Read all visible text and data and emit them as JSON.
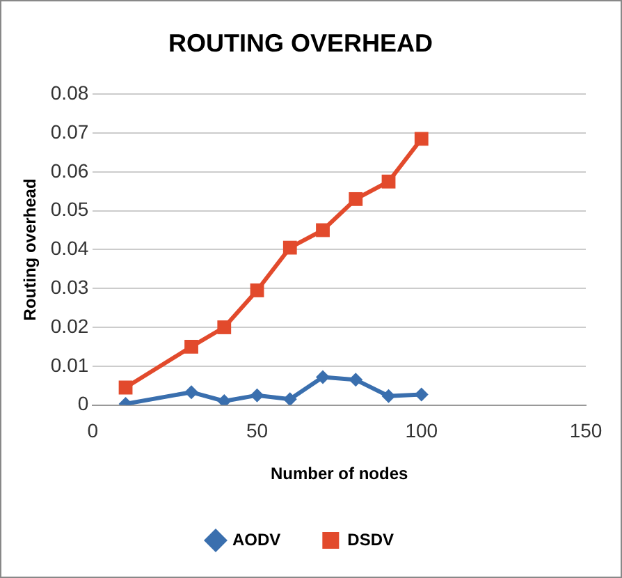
{
  "chart_data": {
    "type": "line",
    "title": "ROUTING OVERHEAD",
    "xlabel": "Number of nodes",
    "ylabel": "Routing overhead",
    "x": [
      10,
      30,
      40,
      50,
      60,
      70,
      80,
      90,
      100
    ],
    "series": [
      {
        "name": "AODV",
        "color": "#3a6fae",
        "marker": "diamond",
        "values": [
          0.0003,
          0.0033,
          0.001,
          0.0025,
          0.0015,
          0.0072,
          0.0065,
          0.0023,
          0.0027
        ]
      },
      {
        "name": "DSDV",
        "color": "#e24a2c",
        "marker": "square",
        "values": [
          0.0045,
          0.015,
          0.02,
          0.0295,
          0.0405,
          0.045,
          0.053,
          0.0575,
          0.0685
        ]
      }
    ],
    "xlim": [
      0,
      150
    ],
    "xticks": [
      0,
      50,
      100,
      150
    ],
    "ylim": [
      0,
      0.08
    ],
    "yticks": [
      0,
      0.01,
      0.02,
      0.03,
      0.04,
      0.05,
      0.06,
      0.07,
      0.08
    ],
    "grid": "y",
    "legend": "bottom",
    "line_style": "solid"
  }
}
